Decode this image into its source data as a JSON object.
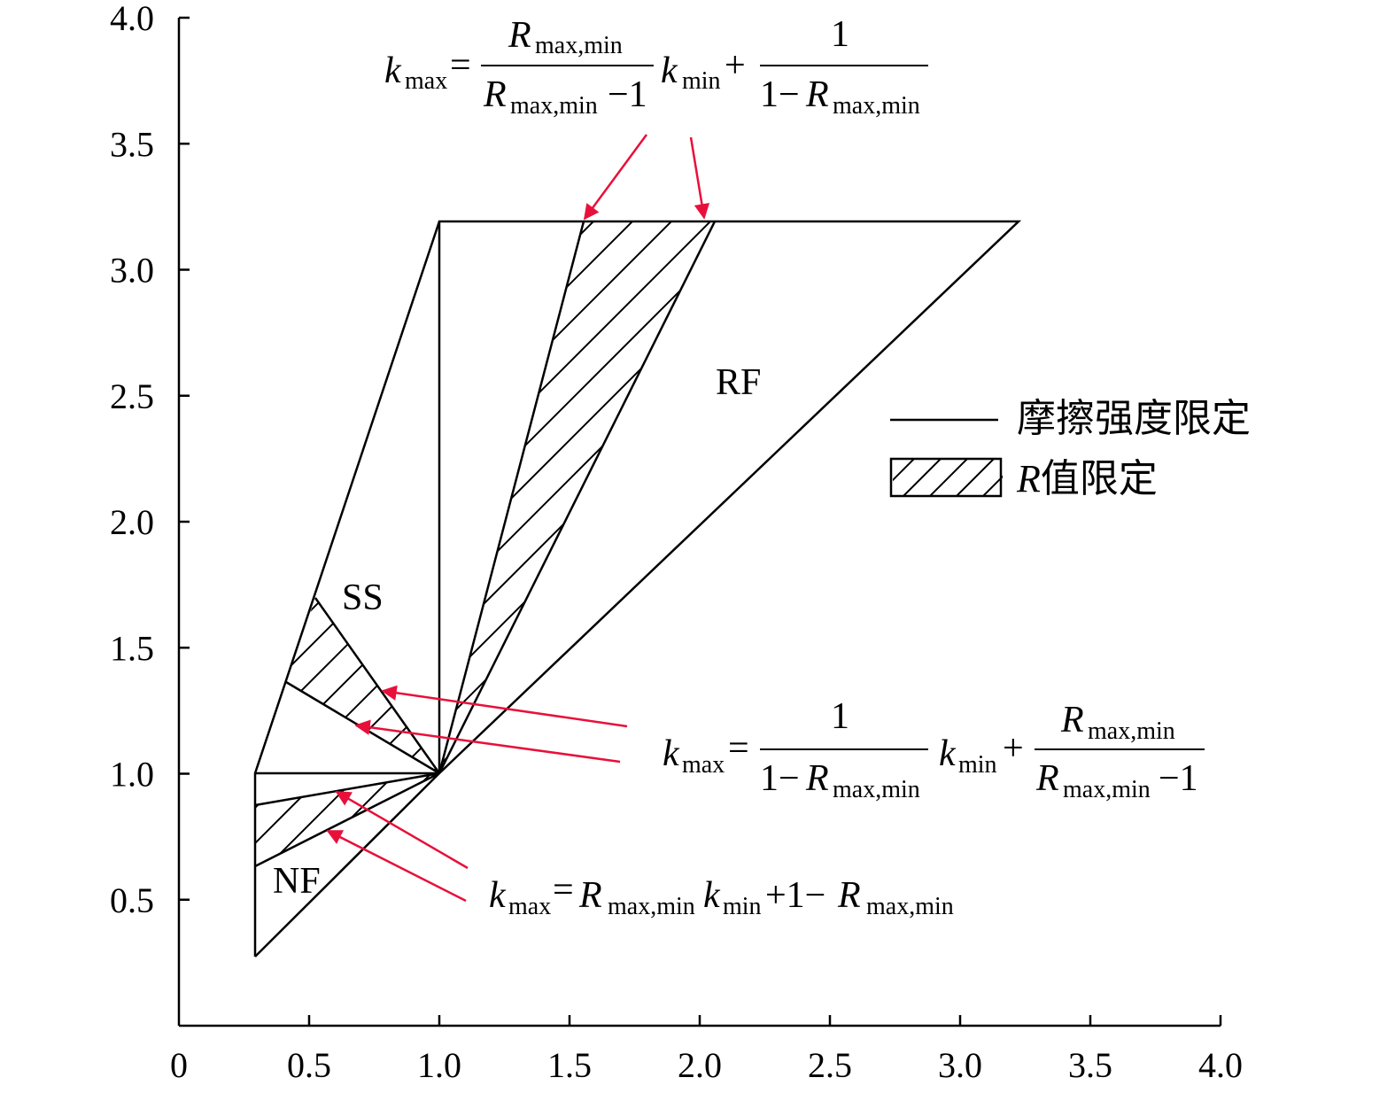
{
  "axes": {
    "x_ticks": [
      "0",
      "0.5",
      "1.0",
      "1.5",
      "2.0",
      "2.5",
      "3.0",
      "3.5",
      "4.0"
    ],
    "y_ticks": [
      "0.5",
      "1.0",
      "1.5",
      "2.0",
      "2.5",
      "3.0",
      "3.5",
      "4.0"
    ],
    "xlim": [
      0,
      4
    ],
    "ylim": [
      0,
      4
    ]
  },
  "regions": {
    "ss": "SS",
    "rf": "RF",
    "nf": "NF"
  },
  "legend": {
    "line_label": "摩擦强度限定",
    "hatch_label_r": "R",
    "hatch_label_rest": "值限定"
  },
  "equations": {
    "top": {
      "k": "k",
      "max": "max",
      "eq": "=",
      "R": "R",
      "maxmin": "max,min",
      "minus1": "−1",
      "kmin_k": "k",
      "min": "min",
      "plus": "+",
      "one": "1",
      "one_minus": "1−"
    },
    "middle": {
      "k": "k",
      "max": "max",
      "eq": "=",
      "one": "1",
      "one_minus": "1−",
      "R": "R",
      "maxmin": "max,min",
      "kmin_k": "k",
      "min": "min",
      "plus": "+",
      "minus1": "−1"
    },
    "bottom": {
      "k": "k",
      "max": "max",
      "eq": "=",
      "R": "R",
      "maxmin": "max,min",
      "kmin_k": "k",
      "min": "min",
      "plus1": "+1−"
    }
  },
  "colors": {
    "line": "#000000",
    "arrow": "#e8103a",
    "background": "#ffffff"
  }
}
